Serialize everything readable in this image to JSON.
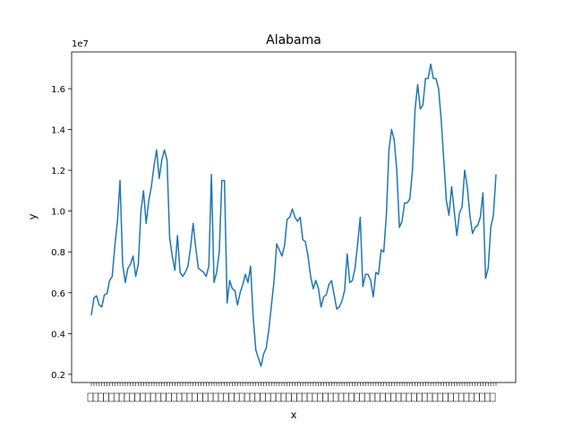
{
  "chart_data": {
    "type": "line",
    "title": "Alabama",
    "xlabel": "x",
    "ylabel": "y",
    "y_scale_label": "1e7",
    "y_ticks": [
      0.2,
      0.4,
      0.6,
      0.8,
      1.0,
      1.2,
      1.4,
      1.6
    ],
    "y_tick_labels": [
      "0.2",
      "0.4",
      "0.6",
      "0.8",
      "1.0",
      "1.2",
      "1.4",
      "1.6"
    ],
    "ylim": [
      0.16,
      1.78
    ],
    "x_tick_labels_note": "x tick labels are densely overlapping and illegible",
    "line_color": "#1f77b4",
    "grid": false,
    "values": [
      0.49,
      0.575,
      0.585,
      0.54,
      0.53,
      0.59,
      0.595,
      0.66,
      0.68,
      0.83,
      0.95,
      1.15,
      0.74,
      0.65,
      0.72,
      0.74,
      0.78,
      0.68,
      0.74,
      1.0,
      1.1,
      0.94,
      1.05,
      1.12,
      1.22,
      1.3,
      1.16,
      1.25,
      1.3,
      1.25,
      0.87,
      0.78,
      0.71,
      0.88,
      0.7,
      0.68,
      0.7,
      0.73,
      0.82,
      0.94,
      0.82,
      0.72,
      0.71,
      0.7,
      0.68,
      0.73,
      1.18,
      0.65,
      0.7,
      0.8,
      1.15,
      1.15,
      0.55,
      0.66,
      0.62,
      0.61,
      0.54,
      0.6,
      0.64,
      0.69,
      0.65,
      0.73,
      0.48,
      0.32,
      0.28,
      0.24,
      0.3,
      0.33,
      0.42,
      0.54,
      0.66,
      0.84,
      0.81,
      0.78,
      0.83,
      0.96,
      0.97,
      1.01,
      0.97,
      0.95,
      0.97,
      0.86,
      0.85,
      0.78,
      0.68,
      0.62,
      0.66,
      0.62,
      0.53,
      0.58,
      0.59,
      0.64,
      0.66,
      0.59,
      0.52,
      0.53,
      0.56,
      0.61,
      0.79,
      0.65,
      0.66,
      0.72,
      0.84,
      0.97,
      0.63,
      0.69,
      0.69,
      0.66,
      0.58,
      0.7,
      0.69,
      0.81,
      0.8,
      0.98,
      1.3,
      1.4,
      1.35,
      1.2,
      0.92,
      0.95,
      1.04,
      1.04,
      1.06,
      1.2,
      1.5,
      1.62,
      1.5,
      1.52,
      1.65,
      1.65,
      1.72,
      1.65,
      1.65,
      1.6,
      1.45,
      1.25,
      1.05,
      0.98,
      1.12,
      1.0,
      0.88,
      0.99,
      1.02,
      1.2,
      1.12,
      0.98,
      0.89,
      0.92,
      0.93,
      0.97,
      1.09,
      0.67,
      0.72,
      0.92,
      0.98,
      1.18
    ]
  }
}
